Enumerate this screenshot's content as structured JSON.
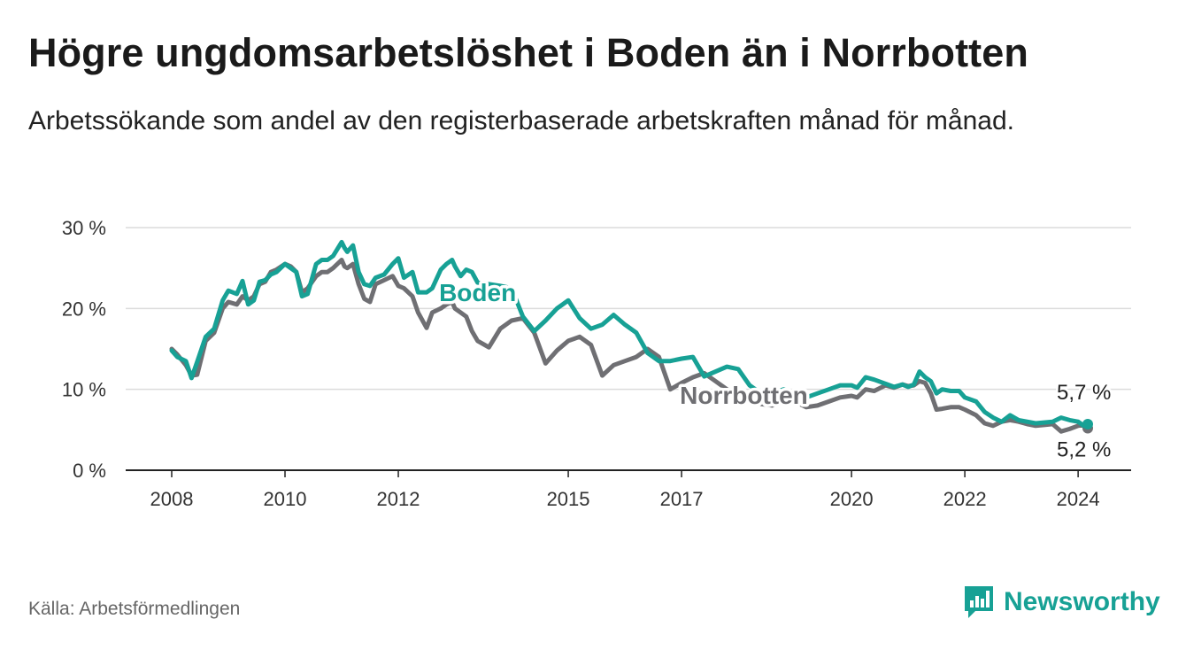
{
  "title": "Högre ungdomsarbetslöshet i Boden än i Norrbotten",
  "subtitle": "Arbetssökande som andel av den registerbaserade arbetskraften månad för månad.",
  "source": "Källa: Arbetsförmedlingen",
  "brand": {
    "name": "Newsworthy",
    "icon": "newsworthy-logo-icon"
  },
  "colors": {
    "boden": "#17a195",
    "norrbotten": "#6f6f73",
    "grid": "#dcdcdc",
    "axis": "#222222"
  },
  "chart_data": {
    "type": "line",
    "title": "Högre ungdomsarbetslöshet i Boden än i Norrbotten",
    "xlabel": "",
    "ylabel": "",
    "xlim": [
      2008.0,
      2024.17
    ],
    "ylim": [
      0,
      30
    ],
    "y_ticks": [
      0,
      10,
      20,
      30
    ],
    "y_tick_labels": [
      "0 %",
      "10 %",
      "20 %",
      "30 %"
    ],
    "x_ticks": [
      2008,
      2010,
      2012,
      2015,
      2017,
      2020,
      2022,
      2024
    ],
    "x_tick_labels": [
      "2008",
      "2010",
      "2012",
      "2015",
      "2017",
      "2020",
      "2022",
      "2024"
    ],
    "grid": true,
    "series": [
      {
        "name": "Boden",
        "label": "Boden",
        "end_label": "5,7 %",
        "x": [
          2008.0,
          2008.1,
          2008.25,
          2008.35,
          2008.45,
          2008.6,
          2008.75,
          2008.9,
          2009.0,
          2009.15,
          2009.25,
          2009.35,
          2009.45,
          2009.55,
          2009.65,
          2009.75,
          2009.85,
          2010.0,
          2010.1,
          2010.2,
          2010.3,
          2010.4,
          2010.55,
          2010.65,
          2010.75,
          2010.85,
          2011.0,
          2011.05,
          2011.1,
          2011.2,
          2011.3,
          2011.4,
          2011.5,
          2011.6,
          2011.75,
          2011.9,
          2012.0,
          2012.1,
          2012.25,
          2012.35,
          2012.5,
          2012.6,
          2012.75,
          2012.85,
          2012.95,
          2013.0,
          2013.1,
          2013.2,
          2013.3,
          2013.4,
          2013.6,
          2013.8,
          2014.0,
          2014.2,
          2014.4,
          2014.6,
          2014.8,
          2015.0,
          2015.2,
          2015.4,
          2015.6,
          2015.8,
          2016.0,
          2016.2,
          2016.4,
          2016.6,
          2016.8,
          2017.0,
          2017.2,
          2017.4,
          2017.6,
          2017.8,
          2018.0,
          2018.2,
          2018.4,
          2018.6,
          2018.8,
          2019.0,
          2019.2,
          2019.4,
          2019.6,
          2019.8,
          2020.0,
          2020.1,
          2020.25,
          2020.4,
          2020.6,
          2020.75,
          2020.9,
          2021.0,
          2021.1,
          2021.2,
          2021.3,
          2021.4,
          2021.5,
          2021.6,
          2021.75,
          2021.9,
          2022.0,
          2022.2,
          2022.35,
          2022.5,
          2022.65,
          2022.8,
          2022.95,
          2023.1,
          2023.25,
          2023.4,
          2023.55,
          2023.7,
          2023.85,
          2024.0,
          2024.1,
          2024.17
        ],
        "values": [
          14.8,
          14.0,
          13.5,
          11.4,
          13.4,
          16.5,
          17.5,
          21.0,
          22.2,
          21.8,
          23.4,
          20.5,
          21.0,
          23.3,
          23.5,
          24.2,
          24.5,
          25.5,
          25.0,
          24.5,
          21.5,
          21.8,
          25.5,
          26.0,
          26.0,
          26.5,
          28.2,
          27.5,
          27.0,
          27.8,
          24.5,
          23.0,
          22.8,
          23.8,
          24.2,
          25.5,
          26.2,
          23.8,
          24.5,
          22.0,
          22.0,
          22.5,
          24.8,
          25.5,
          26.0,
          25.2,
          24.0,
          24.8,
          24.5,
          23.2,
          23.0,
          22.8,
          22.5,
          19.0,
          17.2,
          18.5,
          20.0,
          21.0,
          18.8,
          17.5,
          18.0,
          19.2,
          18.0,
          17.0,
          14.5,
          13.5,
          13.5,
          13.8,
          14.0,
          11.6,
          12.2,
          12.8,
          12.5,
          10.5,
          9.5,
          9.5,
          10.0,
          9.5,
          9.0,
          9.5,
          10.0,
          10.5,
          10.5,
          10.2,
          11.5,
          11.2,
          10.7,
          10.3,
          10.6,
          10.3,
          10.6,
          12.2,
          11.5,
          11.0,
          9.5,
          10.0,
          9.8,
          9.8,
          9.0,
          8.5,
          7.2,
          6.5,
          6.0,
          6.8,
          6.2,
          6.0,
          5.8,
          5.9,
          6.0,
          6.5,
          6.2,
          6.0,
          5.5,
          5.7
        ]
      },
      {
        "name": "Norrbotten",
        "label": "Norrbotten",
        "end_label": "5,2 %",
        "x": [
          2008.0,
          2008.1,
          2008.25,
          2008.35,
          2008.45,
          2008.6,
          2008.75,
          2008.9,
          2009.0,
          2009.15,
          2009.25,
          2009.35,
          2009.45,
          2009.55,
          2009.65,
          2009.75,
          2009.85,
          2010.0,
          2010.1,
          2010.2,
          2010.3,
          2010.4,
          2010.55,
          2010.65,
          2010.75,
          2010.85,
          2011.0,
          2011.05,
          2011.1,
          2011.2,
          2011.3,
          2011.4,
          2011.5,
          2011.6,
          2011.75,
          2011.9,
          2012.0,
          2012.1,
          2012.25,
          2012.35,
          2012.5,
          2012.6,
          2012.75,
          2012.85,
          2012.95,
          2013.0,
          2013.1,
          2013.2,
          2013.3,
          2013.4,
          2013.6,
          2013.8,
          2014.0,
          2014.2,
          2014.4,
          2014.6,
          2014.8,
          2015.0,
          2015.2,
          2015.4,
          2015.6,
          2015.8,
          2016.0,
          2016.2,
          2016.4,
          2016.6,
          2016.8,
          2017.0,
          2017.2,
          2017.4,
          2017.6,
          2017.8,
          2018.0,
          2018.2,
          2018.4,
          2018.6,
          2018.8,
          2019.0,
          2019.2,
          2019.4,
          2019.6,
          2019.8,
          2020.0,
          2020.1,
          2020.25,
          2020.4,
          2020.6,
          2020.75,
          2020.9,
          2021.0,
          2021.1,
          2021.2,
          2021.3,
          2021.4,
          2021.5,
          2021.6,
          2021.75,
          2021.9,
          2022.0,
          2022.2,
          2022.35,
          2022.5,
          2022.65,
          2022.8,
          2022.95,
          2023.1,
          2023.25,
          2023.4,
          2023.55,
          2023.7,
          2023.85,
          2024.0,
          2024.1,
          2024.17
        ],
        "values": [
          15.0,
          14.3,
          13.0,
          11.7,
          11.8,
          16.0,
          17.0,
          20.0,
          20.8,
          20.5,
          21.5,
          21.0,
          21.5,
          23.0,
          23.3,
          24.5,
          24.8,
          25.5,
          25.2,
          24.5,
          22.0,
          22.5,
          24.0,
          24.5,
          24.5,
          25.0,
          26.0,
          25.2,
          25.0,
          25.5,
          23.0,
          21.2,
          20.8,
          23.0,
          23.5,
          24.0,
          22.8,
          22.5,
          21.5,
          19.5,
          17.6,
          19.5,
          20.0,
          20.5,
          20.8,
          20.0,
          19.5,
          19.0,
          17.2,
          16.0,
          15.2,
          17.5,
          18.5,
          18.8,
          17.0,
          13.2,
          14.8,
          16.0,
          16.5,
          15.5,
          11.7,
          13.0,
          13.5,
          14.0,
          15.0,
          14.0,
          10.0,
          10.8,
          11.5,
          12.0,
          11.0,
          10.0,
          9.0,
          8.5,
          8.2,
          8.0,
          8.5,
          8.5,
          7.8,
          8.0,
          8.5,
          9.0,
          9.2,
          9.0,
          10.0,
          9.8,
          10.5,
          10.2,
          10.6,
          10.4,
          10.5,
          11.0,
          10.8,
          9.5,
          7.5,
          7.6,
          7.8,
          7.8,
          7.5,
          6.8,
          5.8,
          5.5,
          6.0,
          6.2,
          6.0,
          5.7,
          5.5,
          5.6,
          5.7,
          4.8,
          5.1,
          5.5,
          5.6,
          5.2
        ]
      }
    ]
  }
}
